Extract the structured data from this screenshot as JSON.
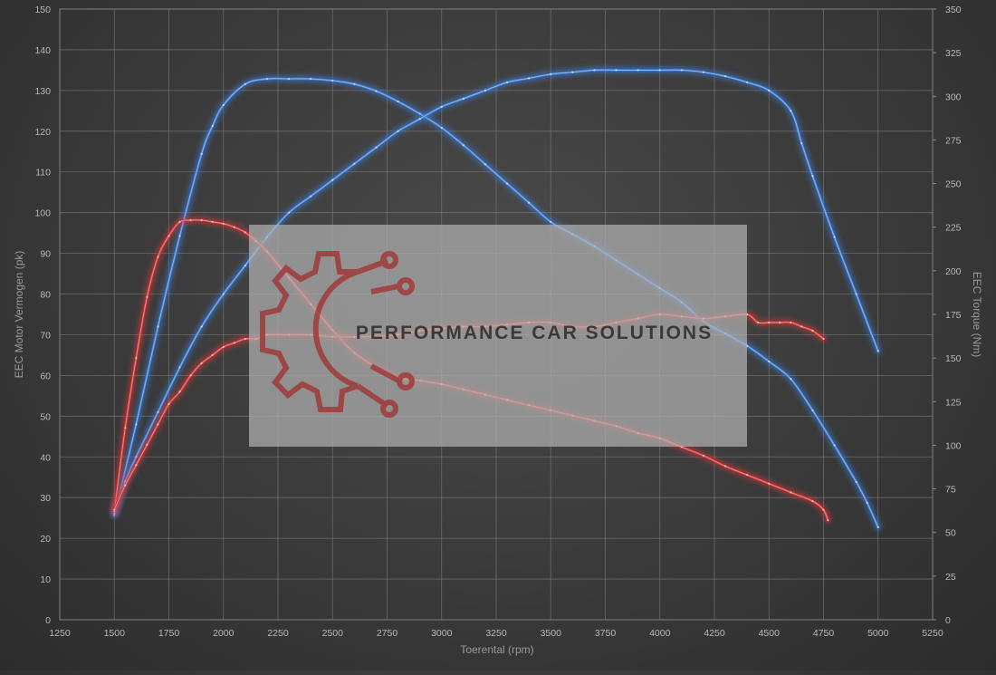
{
  "chart_data": {
    "type": "line",
    "xlabel": "Toerental (rpm)",
    "ylabel_left": "EEC Motor Vermogen (pk)",
    "ylabel_right": "EEC Torque (Nm)",
    "xlim": [
      1250,
      5250
    ],
    "ylim_left": [
      0,
      150
    ],
    "ylim_right": [
      0,
      350
    ],
    "x_ticks": [
      "1250",
      "1500",
      "1750",
      "2000",
      "2250",
      "2500",
      "2750",
      "3000",
      "3250",
      "3500",
      "3750",
      "4000",
      "4250",
      "4500",
      "4750",
      "5000",
      "5250"
    ],
    "y_ticks_left": [
      "0",
      "10",
      "20",
      "30",
      "40",
      "50",
      "60",
      "70",
      "80",
      "90",
      "100",
      "110",
      "120",
      "130",
      "140",
      "150"
    ],
    "y_ticks_right": [
      "0",
      "25",
      "50",
      "75",
      "100",
      "125",
      "150",
      "175",
      "200",
      "225",
      "250",
      "275",
      "300",
      "325",
      "350"
    ],
    "grid": true,
    "series": [
      {
        "axis": "right",
        "color": "#3f7fd6",
        "x": [
          1500,
          1600,
          1700,
          1800,
          1900,
          1950,
          2000,
          2100,
          2200,
          2300,
          2400,
          2500,
          2600,
          2700,
          2800,
          2900,
          3000,
          3100,
          3200,
          3300,
          3400,
          3500,
          3600,
          3700,
          3800,
          3900,
          4000,
          4100,
          4200,
          4300,
          4400,
          4500,
          4600,
          4700,
          4800,
          4900,
          4950,
          5000
        ],
        "y": [
          60,
          112,
          168,
          220,
          267,
          283,
          295,
          307,
          310,
          310,
          310,
          309,
          307,
          303,
          297,
          290,
          282,
          272,
          261,
          250,
          239,
          228,
          221,
          214,
          206,
          198,
          190,
          182,
          171,
          164,
          157,
          148,
          138,
          120,
          100,
          79,
          67,
          53
        ]
      },
      {
        "axis": "left",
        "color": "#3f7fd6",
        "x": [
          1500,
          1550,
          1600,
          1700,
          1800,
          1900,
          2000,
          2100,
          2200,
          2300,
          2400,
          2500,
          2600,
          2700,
          2800,
          2900,
          3000,
          3100,
          3200,
          3300,
          3400,
          3500,
          3600,
          3700,
          3800,
          3900,
          4000,
          4100,
          4200,
          4300,
          4400,
          4500,
          4600,
          4650,
          4700,
          4800,
          4900,
          5000
        ],
        "y": [
          26,
          34,
          40,
          51,
          62,
          72,
          80,
          87,
          94,
          100,
          104,
          108,
          112,
          116,
          120,
          123,
          126,
          128,
          130,
          132,
          133,
          134,
          134.5,
          135,
          135,
          135,
          135,
          135,
          134.5,
          133.5,
          132,
          130,
          125,
          117,
          109,
          94,
          80,
          66
        ]
      },
      {
        "axis": "right",
        "color": "#d63a3a",
        "x": [
          1500,
          1550,
          1600,
          1650,
          1700,
          1750,
          1800,
          1850,
          1900,
          1950,
          2000,
          2050,
          2100,
          2150,
          2200,
          2300,
          2400,
          2500,
          2600,
          2700,
          2800,
          2900,
          3000,
          3100,
          3200,
          3300,
          3400,
          3500,
          3600,
          3700,
          3800,
          3900,
          4000,
          4100,
          4200,
          4300,
          4400,
          4500,
          4600,
          4700,
          4750,
          4770
        ],
        "y": [
          62,
          110,
          150,
          185,
          208,
          220,
          228,
          229,
          229,
          228,
          227,
          225,
          222,
          217,
          211,
          196,
          181,
          166,
          153,
          145,
          139,
          137,
          135,
          132,
          129,
          126,
          123,
          120,
          117,
          114,
          111,
          107,
          104,
          99,
          94,
          88,
          83,
          78,
          73,
          68,
          63,
          57
        ]
      },
      {
        "axis": "left",
        "color": "#d63a3a",
        "x": [
          1500,
          1550,
          1600,
          1650,
          1700,
          1750,
          1800,
          1850,
          1900,
          1950,
          2000,
          2050,
          2100,
          2150,
          2200,
          2300,
          2400,
          2500,
          2600,
          2700,
          2800,
          2900,
          3000,
          3100,
          3200,
          3300,
          3400,
          3500,
          3600,
          3700,
          3800,
          3900,
          4000,
          4100,
          4200,
          4300,
          4400,
          4450,
          4500,
          4550,
          4600,
          4650,
          4700,
          4750
        ],
        "y": [
          27,
          33,
          38,
          43,
          48,
          53,
          56,
          60,
          63,
          65,
          67,
          68,
          69,
          69,
          70,
          70,
          70,
          69.5,
          69.5,
          69.5,
          70,
          71,
          71.5,
          72,
          72,
          72.5,
          73,
          73,
          72,
          72,
          73,
          74,
          75,
          74.5,
          74,
          74.5,
          75,
          73,
          73,
          73,
          73,
          72,
          71,
          69
        ]
      }
    ],
    "watermark_text": "PERFORMANCE CAR SOLUTIONS"
  }
}
